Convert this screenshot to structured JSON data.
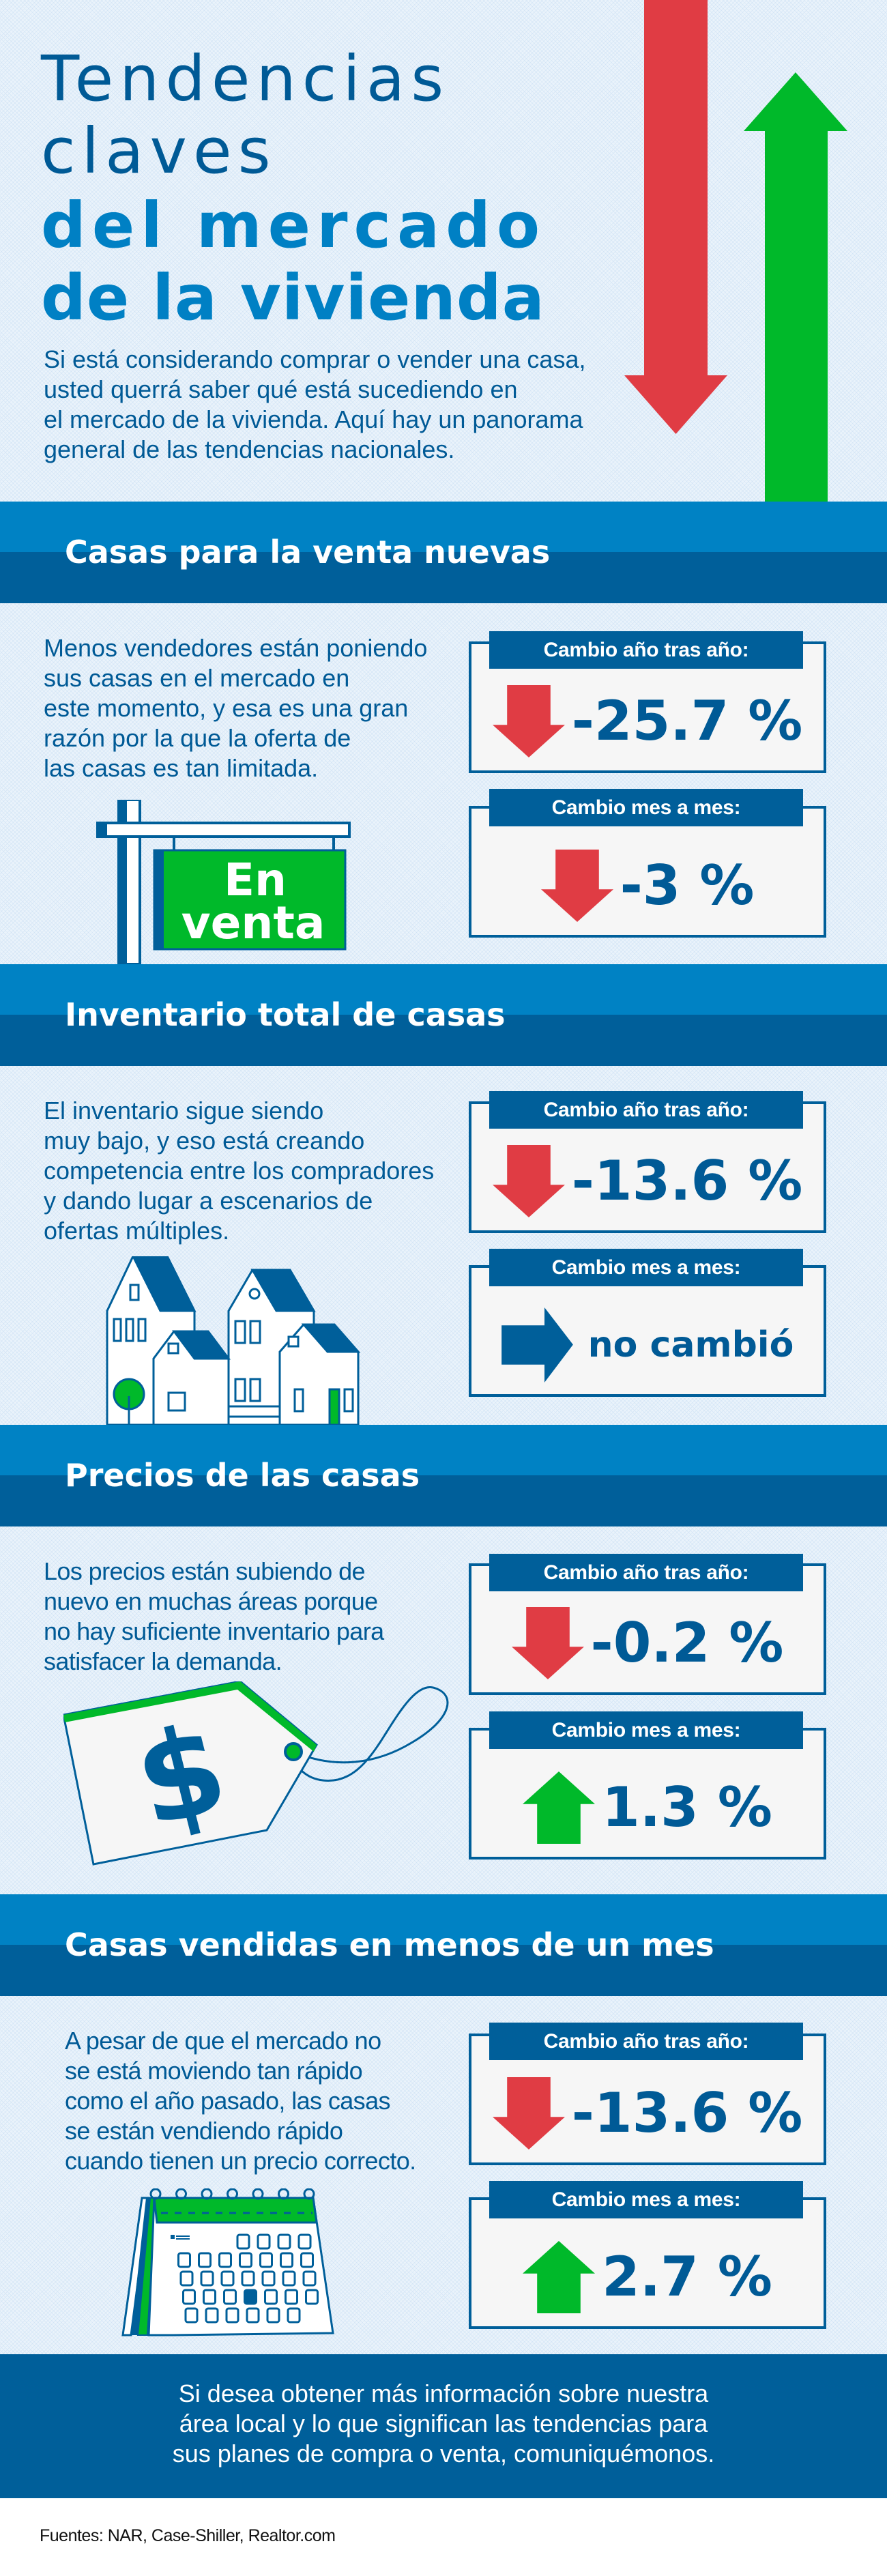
{
  "title": {
    "line1": "Tendencias",
    "line2": "claves",
    "line3": "del mercado",
    "line4": "de la vivienda"
  },
  "intro": [
    "Si está considerando comprar o vender una casa,",
    "usted querrá saber qué está sucediendo en",
    "el mercado de la vivienda. Aquí hay un panorama",
    "general de las tendencias nacionales."
  ],
  "sections": [
    {
      "heading": "Casas para la venta nuevas",
      "body": [
        "Menos vendedores están poniendo",
        "sus casas en el mercado en",
        "este momento, y esa es una gran",
        "razón por la que la oferta de",
        "las casas es tan limitada."
      ],
      "illustration": "for-sale-sign",
      "sign_text": [
        "En",
        "venta"
      ],
      "yoy": {
        "label": "Cambio año tras año:",
        "value": "-25.7 %",
        "direction": "down"
      },
      "mom": {
        "label": "Cambio mes a mes:",
        "value": "-3 %",
        "direction": "down"
      }
    },
    {
      "heading": "Inventario total de casas",
      "body": [
        "El inventario sigue siendo",
        "muy bajo, y eso está creando",
        "competencia entre los compradores",
        "y dando lugar a escenarios de",
        "ofertas múltiples."
      ],
      "illustration": "houses",
      "yoy": {
        "label": "Cambio año tras año:",
        "value": "-13.6 %",
        "direction": "down"
      },
      "mom": {
        "label": "Cambio mes a mes:",
        "value": "no cambió",
        "direction": "right"
      }
    },
    {
      "heading": "Precios de las casas",
      "body": [
        "Los precios están subiendo de",
        "nuevo en muchas áreas porque",
        "no hay suficiente inventario para",
        "satisfacer la demanda."
      ],
      "illustration": "price-tag",
      "tag_symbol": "$",
      "yoy": {
        "label": "Cambio año tras año:",
        "value": "-0.2 %",
        "direction": "down"
      },
      "mom": {
        "label": "Cambio mes a mes:",
        "value": "1.3 %",
        "direction": "up"
      }
    },
    {
      "heading": "Casas vendidas en menos de un mes",
      "body": [
        "A pesar de que el mercado no",
        "se está moviendo tan rápido",
        "como el año pasado, las casas",
        "se están vendiendo rápido",
        "cuando tienen un precio correcto."
      ],
      "illustration": "calendar",
      "yoy": {
        "label": "Cambio año tras año:",
        "value": "-13.6 %",
        "direction": "down"
      },
      "mom": {
        "label": "Cambio mes a mes:",
        "value": "2.7 %",
        "direction": "up"
      }
    }
  ],
  "cta": [
    "Si desea obtener más información sobre nuestra",
    "área local y lo que significan las tendencias para",
    "sus planes de compra o venta, comuniquémonos."
  ],
  "sources": "Fuentes: NAR, Case-Shiller, Realtor.com",
  "colors": {
    "primary_dark": "#005f9a",
    "primary_light": "#0082c4",
    "down_red": "#e03c44",
    "up_green": "#00b92a",
    "background": "#eaf3fb"
  }
}
